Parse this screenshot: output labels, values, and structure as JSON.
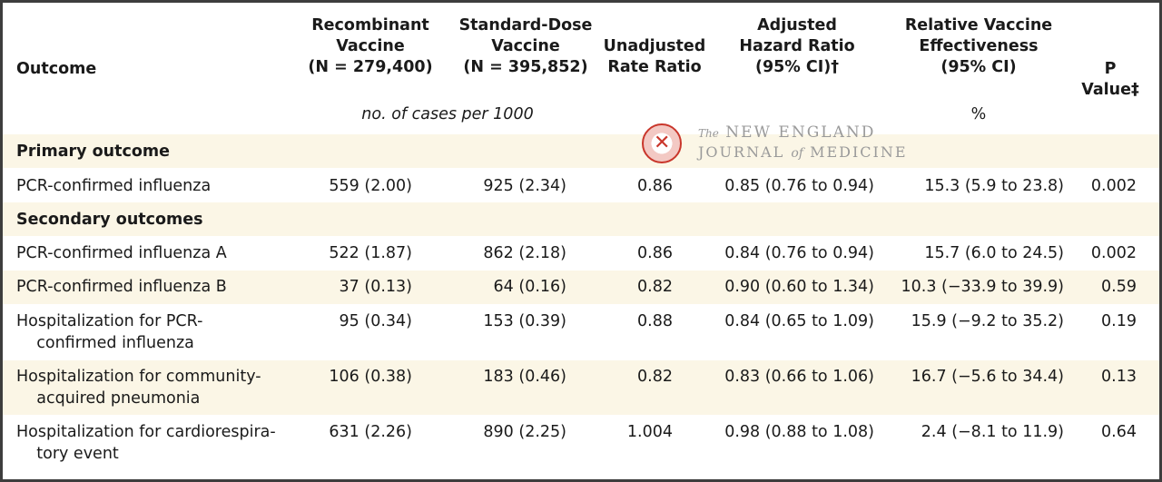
{
  "headers": {
    "outcome": "Outcome",
    "recombinant": "Recombinant\nVaccine\n(N = 279,400)",
    "standard": "Standard-Dose\nVaccine\n(N = 395,852)",
    "unadjusted": "Unadjusted\nRate Ratio",
    "adjusted": "Adjusted\nHazard Ratio\n(95% CI)†",
    "relative": "Relative Vaccine\nEffectiveness\n(95% CI)",
    "pvalue": "P Value‡"
  },
  "units": {
    "cases": "no. of cases per 1000",
    "percent": "%"
  },
  "logo": {
    "line1_prefix": "The",
    "line1": "NEW ENGLAND",
    "line2_a": "JOURNAL",
    "line2_of": "of",
    "line2_b": "MEDICINE"
  },
  "sections": {
    "primary": "Primary outcome",
    "secondary": "Secondary outcomes"
  },
  "rows": [
    {
      "outcome": "PCR-confirmed influenza",
      "recombinant": "559 (2.00)",
      "standard": "925 (2.34)",
      "unadjusted": "0.86",
      "adjusted": "0.85 (0.76 to 0.94)",
      "relative": "15.3 (5.9 to 23.8)",
      "pvalue": "0.002"
    },
    {
      "outcome": "PCR-confirmed influenza A",
      "recombinant": "522 (1.87)",
      "standard": "862 (2.18)",
      "unadjusted": "0.86",
      "adjusted": "0.84 (0.76 to 0.94)",
      "relative": "15.7 (6.0 to 24.5)",
      "pvalue": "0.002"
    },
    {
      "outcome": "PCR-confirmed influenza B",
      "recombinant": "37 (0.13)",
      "standard": "64 (0.16)",
      "unadjusted": "0.82",
      "adjusted": "0.90 (0.60 to 1.34)",
      "relative": "10.3 (−33.9 to 39.9)",
      "pvalue": "0.59"
    },
    {
      "outcome": "Hospitalization for PCR-\n    confirmed influenza",
      "recombinant": "95 (0.34)",
      "standard": "153 (0.39)",
      "unadjusted": "0.88",
      "adjusted": "0.84 (0.65 to 1.09)",
      "relative": "15.9 (−9.2 to 35.2)",
      "pvalue": "0.19"
    },
    {
      "outcome": "Hospitalization for community-\n    acquired pneumonia",
      "recombinant": "106 (0.38)",
      "standard": "183 (0.46)",
      "unadjusted": "0.82",
      "adjusted": "0.83 (0.66 to 1.06)",
      "relative": "16.7 (−5.6 to 34.4)",
      "pvalue": "0.13"
    },
    {
      "outcome": "Hospitalization for cardiorespira-\n    tory event",
      "recombinant": "631 (2.26)",
      "standard": "890 (2.25)",
      "unadjusted": "1.004",
      "adjusted": "0.98 (0.88 to 1.08)",
      "relative": "2.4 (−8.1 to 11.9)",
      "pvalue": "0.64"
    }
  ]
}
